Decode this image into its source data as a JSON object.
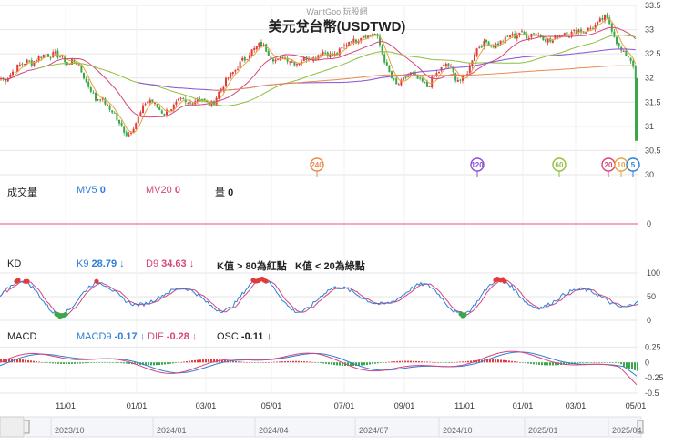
{
  "watermark": "WantGoo 玩股網",
  "chart_data": {
    "type": "line",
    "title": "美元兌台幣(USDTWD)",
    "price_axis": {
      "ticks": [
        "33.5",
        "33",
        "32.5",
        "32",
        "31.5",
        "31",
        "30.5",
        "30"
      ],
      "ylim": [
        30,
        33.5
      ]
    },
    "x_ticks": [
      "11/01",
      "01/01",
      "03/01",
      "05/01",
      "07/01",
      "09/01",
      "11/01",
      "01/01",
      "03/01",
      "05/01"
    ],
    "navigator_ticks": [
      "2023/10",
      "2024/01",
      "2024/04",
      "2024/07",
      "2024/10",
      "2025/01",
      "2025/04"
    ],
    "close_series": [
      [
        0,
        32.0
      ],
      [
        5,
        31.95
      ],
      [
        10,
        32.05
      ],
      [
        15,
        32.15
      ],
      [
        20,
        32.25
      ],
      [
        25,
        32.3
      ],
      [
        30,
        32.35
      ],
      [
        35,
        32.3
      ],
      [
        40,
        32.4
      ],
      [
        45,
        32.45
      ],
      [
        50,
        32.5
      ],
      [
        55,
        32.45
      ],
      [
        60,
        32.5
      ],
      [
        65,
        32.45
      ],
      [
        70,
        32.4
      ],
      [
        75,
        32.25
      ],
      [
        80,
        32.4
      ],
      [
        85,
        32.3
      ],
      [
        90,
        32.1
      ],
      [
        95,
        31.9
      ],
      [
        100,
        31.75
      ],
      [
        105,
        31.55
      ],
      [
        110,
        31.6
      ],
      [
        115,
        31.5
      ],
      [
        120,
        31.35
      ],
      [
        125,
        31.3
      ],
      [
        130,
        31.05
      ],
      [
        135,
        30.95
      ],
      [
        140,
        30.8
      ],
      [
        145,
        30.95
      ],
      [
        150,
        31.1
      ],
      [
        155,
        31.3
      ],
      [
        160,
        31.5
      ],
      [
        165,
        31.55
      ],
      [
        170,
        31.45
      ],
      [
        175,
        31.35
      ],
      [
        180,
        31.25
      ],
      [
        185,
        31.35
      ],
      [
        190,
        31.4
      ],
      [
        195,
        31.5
      ],
      [
        200,
        31.55
      ],
      [
        205,
        31.45
      ],
      [
        210,
        31.5
      ],
      [
        215,
        31.55
      ],
      [
        220,
        31.6
      ],
      [
        225,
        31.5
      ],
      [
        230,
        31.45
      ],
      [
        235,
        31.5
      ],
      [
        240,
        31.7
      ],
      [
        245,
        31.85
      ],
      [
        250,
        32.0
      ],
      [
        255,
        32.1
      ],
      [
        260,
        32.2
      ],
      [
        265,
        32.35
      ],
      [
        270,
        32.4
      ],
      [
        275,
        32.55
      ],
      [
        280,
        32.6
      ],
      [
        285,
        32.7
      ],
      [
        290,
        32.65
      ],
      [
        295,
        32.5
      ],
      [
        300,
        32.4
      ],
      [
        305,
        32.35
      ],
      [
        310,
        32.45
      ],
      [
        315,
        32.4
      ],
      [
        320,
        32.35
      ],
      [
        325,
        32.3
      ],
      [
        330,
        32.35
      ],
      [
        335,
        32.4
      ],
      [
        340,
        32.45
      ],
      [
        345,
        32.4
      ],
      [
        350,
        32.5
      ],
      [
        355,
        32.55
      ],
      [
        360,
        32.5
      ],
      [
        365,
        32.45
      ],
      [
        370,
        32.5
      ],
      [
        375,
        32.6
      ],
      [
        380,
        32.7
      ],
      [
        385,
        32.8
      ],
      [
        390,
        32.75
      ],
      [
        395,
        32.85
      ],
      [
        400,
        32.9
      ],
      [
        405,
        32.85
      ],
      [
        410,
        32.95
      ],
      [
        415,
        32.8
      ],
      [
        420,
        32.5
      ],
      [
        425,
        32.2
      ],
      [
        430,
        32.0
      ],
      [
        435,
        31.85
      ],
      [
        440,
        31.9
      ],
      [
        445,
        32.0
      ],
      [
        450,
        32.1
      ],
      [
        455,
        32.05
      ],
      [
        460,
        31.95
      ],
      [
        465,
        31.9
      ],
      [
        470,
        31.8
      ],
      [
        475,
        32.0
      ],
      [
        480,
        32.1
      ],
      [
        485,
        32.2
      ],
      [
        490,
        32.3
      ],
      [
        495,
        32.2
      ],
      [
        500,
        32.0
      ],
      [
        505,
        31.95
      ],
      [
        510,
        32.0
      ],
      [
        515,
        32.2
      ],
      [
        520,
        32.5
      ],
      [
        525,
        32.65
      ],
      [
        530,
        32.7
      ],
      [
        535,
        32.75
      ],
      [
        540,
        32.65
      ],
      [
        545,
        32.7
      ],
      [
        550,
        32.75
      ],
      [
        555,
        32.8
      ],
      [
        560,
        32.9
      ],
      [
        565,
        32.85
      ],
      [
        570,
        32.95
      ],
      [
        575,
        32.9
      ],
      [
        580,
        32.85
      ],
      [
        585,
        32.95
      ],
      [
        590,
        32.9
      ],
      [
        595,
        32.85
      ],
      [
        600,
        32.8
      ],
      [
        605,
        32.75
      ],
      [
        610,
        32.85
      ],
      [
        615,
        32.9
      ],
      [
        620,
        32.95
      ],
      [
        625,
        32.9
      ],
      [
        630,
        32.95
      ],
      [
        635,
        33.0
      ],
      [
        640,
        32.95
      ],
      [
        645,
        33.0
      ],
      [
        650,
        33.05
      ],
      [
        655,
        33.1
      ],
      [
        660,
        33.2
      ],
      [
        665,
        33.25
      ],
      [
        670,
        33.1
      ],
      [
        675,
        32.85
      ],
      [
        680,
        32.6
      ],
      [
        685,
        32.5
      ],
      [
        690,
        32.45
      ],
      [
        695,
        32.3
      ],
      [
        698,
        31.9
      ],
      [
        700,
        30.7
      ]
    ],
    "moving_averages": [
      {
        "name": "MA5",
        "color": "#e8a33a"
      },
      {
        "name": "MA20",
        "color": "#d6457a"
      },
      {
        "name": "MA60",
        "color": "#8fbf3a"
      },
      {
        "name": "MA120",
        "color": "#8a4fd6"
      },
      {
        "name": "MA240",
        "color": "#e88a4f"
      }
    ],
    "ma_markers": [
      {
        "label": "240",
        "color": "#e88a4f",
        "x": 348
      },
      {
        "label": "120",
        "color": "#8a4fd6",
        "x": 524
      },
      {
        "label": "60",
        "color": "#8fbf3a",
        "x": 614
      },
      {
        "label": "20",
        "color": "#d6457a",
        "x": 668
      },
      {
        "label": "10",
        "color": "#e8a33a",
        "x": 682
      },
      {
        "label": "5",
        "color": "#2f7fd6",
        "x": 695
      }
    ],
    "volume_panel": {
      "title": "成交量",
      "mv5_label": "MV5",
      "mv5_value": "0",
      "mv20_label": "MV20",
      "mv20_value": "0",
      "vol_label": "量",
      "vol_value": "0",
      "axis_tick": "0"
    },
    "kd_panel": {
      "title": "KD",
      "k_label": "K9",
      "k_value": "28.79",
      "d_label": "D9",
      "d_value": "34.63",
      "note1": "K值 > 80為紅點",
      "note2": "K值 < 20為綠點",
      "axis_ticks": [
        "100",
        "50",
        "0"
      ],
      "ylim": [
        0,
        100
      ]
    },
    "macd_panel": {
      "title": "MACD",
      "macd_label": "MACD9",
      "macd_value": "-0.17",
      "dif_label": "DIF",
      "dif_value": "-0.28",
      "osc_label": "OSC",
      "osc_value": "-0.11",
      "axis_ticks": [
        "0.25",
        "0",
        "-0.25",
        "-0.5"
      ],
      "ylim": [
        -0.5,
        0.3
      ]
    },
    "colors": {
      "up": "#e23b3b",
      "down": "#3aa84a",
      "k": "#2f7fd6",
      "d": "#d6457a",
      "grid": "#e6e6e6",
      "zero": "#e05a7a"
    }
  }
}
